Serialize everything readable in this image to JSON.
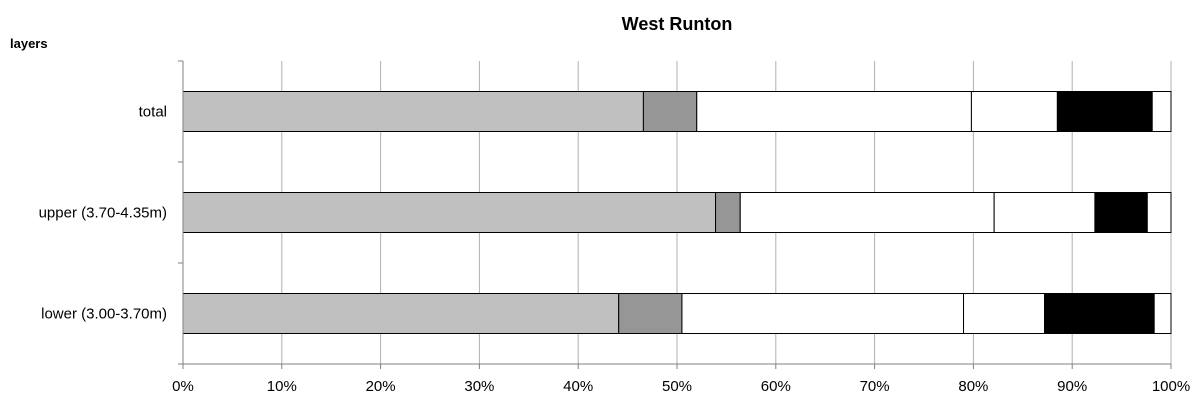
{
  "chart_data": {
    "type": "bar",
    "orientation": "horizontal",
    "stacked": "percent",
    "title": "West Runton",
    "ylabel": "layers",
    "xlabel": "",
    "categories": [
      "total",
      "upper (3.70-4.35m)",
      "lower (3.00-3.70m)"
    ],
    "xlim": [
      0,
      100
    ],
    "x_ticks": [
      "0%",
      "10%",
      "20%",
      "30%",
      "40%",
      "50%",
      "60%",
      "70%",
      "80%",
      "90%",
      "100%"
    ],
    "grid": "vertical",
    "legend": "none",
    "series": [
      {
        "color": "#c0c0c0",
        "values": [
          46.6,
          53.9,
          44.1
        ]
      },
      {
        "color": "#969696",
        "values": [
          5.4,
          2.5,
          6.4
        ]
      },
      {
        "color": "#ffffff",
        "values": [
          27.8,
          25.7,
          28.5
        ]
      },
      {
        "color": "#ffffff",
        "values": [
          8.7,
          10.2,
          8.2
        ]
      },
      {
        "color": "#000000",
        "values": [
          9.6,
          5.3,
          11.1
        ]
      },
      {
        "color": "#ffffff",
        "values": [
          1.9,
          2.4,
          1.7
        ]
      }
    ]
  }
}
